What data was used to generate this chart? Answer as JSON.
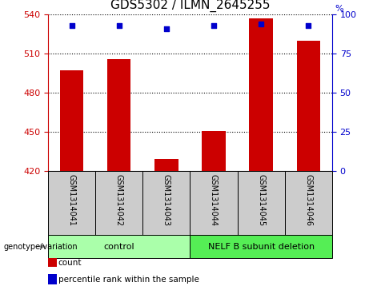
{
  "title": "GDS5302 / ILMN_2645255",
  "samples": [
    "GSM1314041",
    "GSM1314042",
    "GSM1314043",
    "GSM1314044",
    "GSM1314045",
    "GSM1314046"
  ],
  "counts": [
    497,
    506,
    429,
    451,
    537,
    520
  ],
  "percentiles": [
    93,
    93,
    91,
    93,
    94,
    93
  ],
  "ylim_left": [
    420,
    540
  ],
  "ylim_right": [
    0,
    100
  ],
  "yticks_left": [
    420,
    450,
    480,
    510,
    540
  ],
  "yticks_right": [
    0,
    25,
    50,
    75,
    100
  ],
  "bar_color": "#cc0000",
  "dot_color": "#0000cc",
  "bg_xticklabel": "#cccccc",
  "groups": [
    {
      "label": "control",
      "start": 0,
      "end": 3,
      "color": "#aaffaa"
    },
    {
      "label": "NELF B subunit deletion",
      "start": 3,
      "end": 6,
      "color": "#55ee55"
    }
  ],
  "legend_items": [
    {
      "color": "#cc0000",
      "label": "count"
    },
    {
      "color": "#0000cc",
      "label": "percentile rank within the sample"
    }
  ],
  "left_axis_color": "#cc0000",
  "right_axis_color": "#0000cc",
  "title_fontsize": 11,
  "tick_fontsize": 8,
  "sample_fontsize": 7,
  "group_fontsize": 8,
  "legend_fontsize": 7.5
}
